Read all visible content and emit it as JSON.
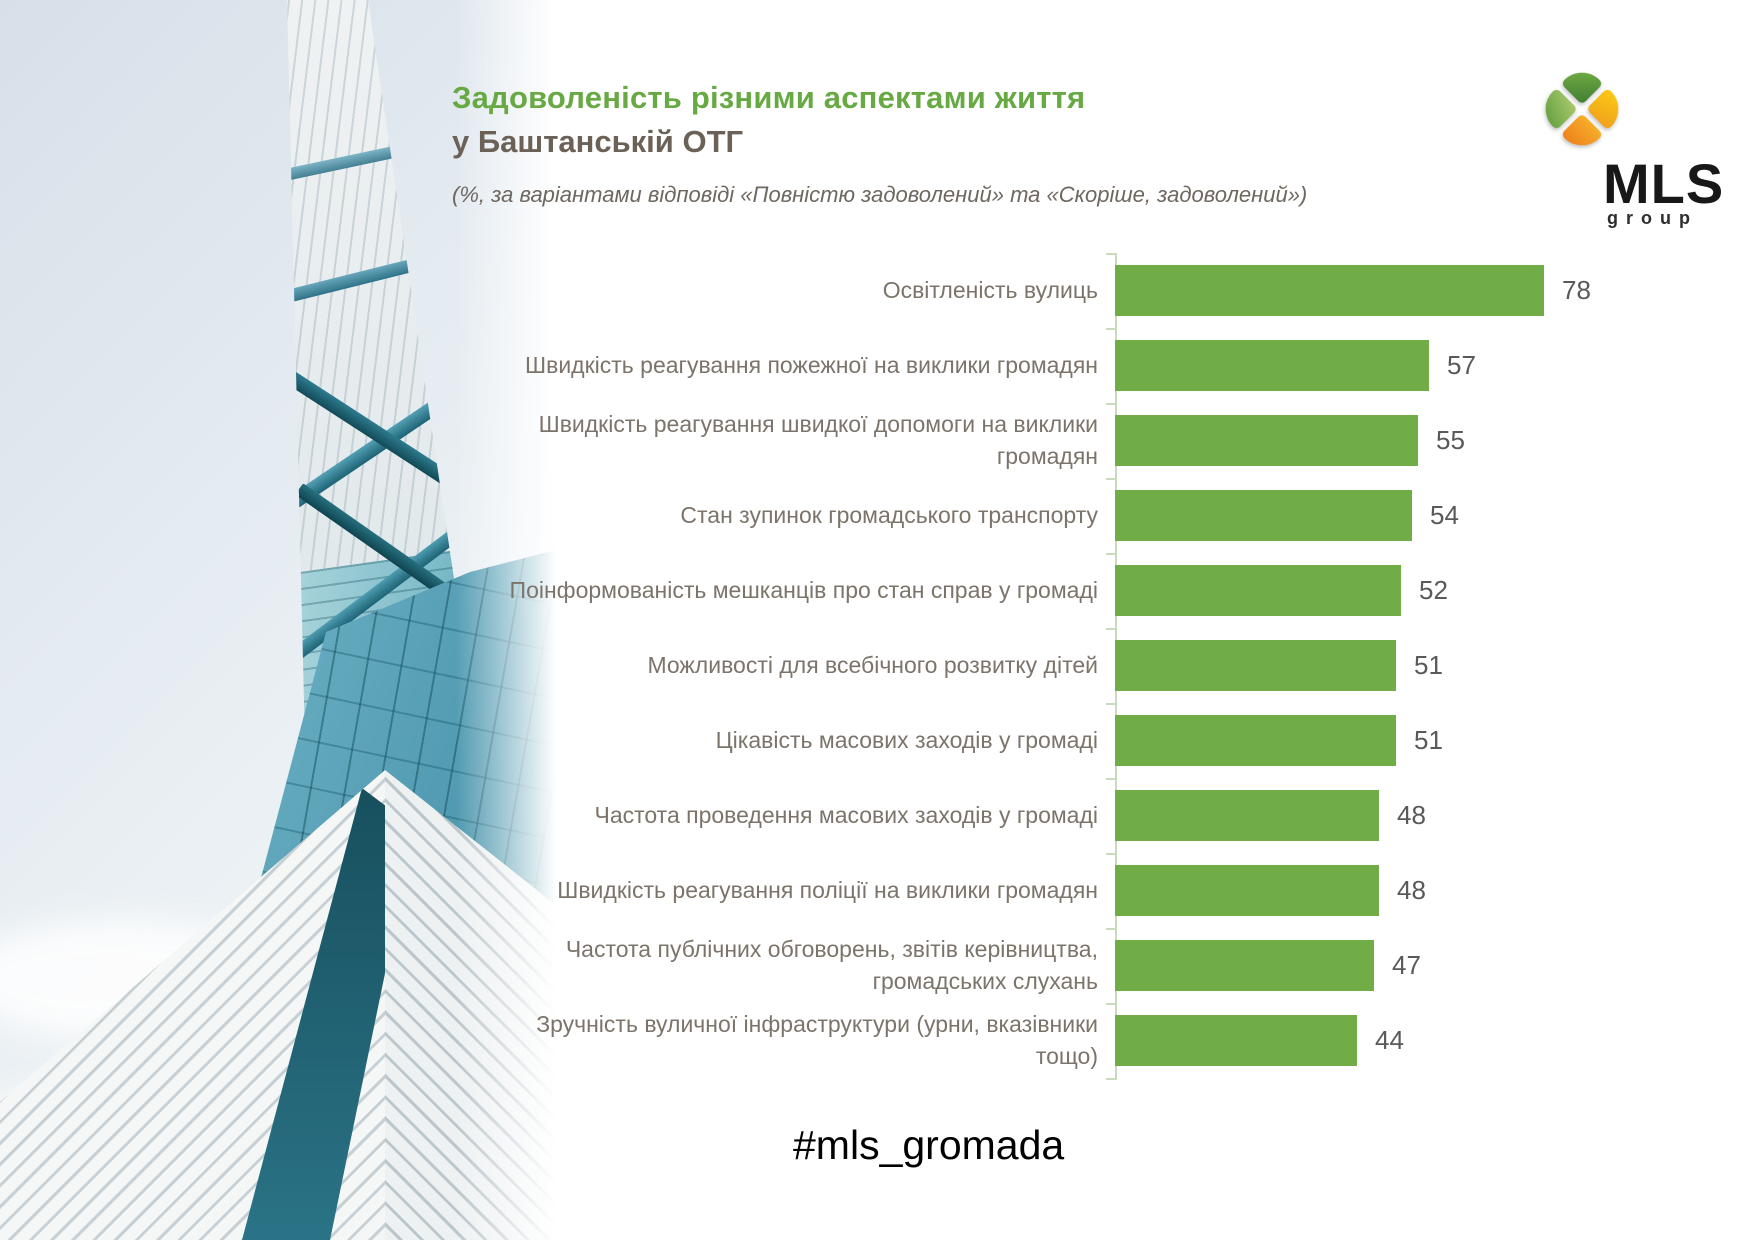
{
  "header": {
    "title_line1": "Задоволеність різними аспектами життя",
    "title_line2": "у Баштанській ОТГ",
    "subtitle": "(%, за варіантами відповіді «Повністю задоволений» та «Скоріше, задоволений»)"
  },
  "logo": {
    "name": "MLS",
    "sub": "group"
  },
  "footer": {
    "hashtag": "#mls_gromada"
  },
  "colors": {
    "bar_green": "#70ad47",
    "title_green": "#67a943",
    "axis_green": "#c6dcbb",
    "label_gray": "#7c746a",
    "value_gray": "#595959"
  },
  "chart_data": {
    "type": "bar",
    "orientation": "horizontal",
    "unit": "%",
    "grid": false,
    "value_labels": "outside-end",
    "categories": [
      "Освітленість вулиць",
      "Швидкість реагування пожежної на виклики громадян",
      "Швидкість реагування швидкої допомоги на виклики громадян",
      "Стан зупинок громадського транспорту",
      "Поінформованість мешканців про стан справ у громаді",
      "Можливості для всебічного розвитку дітей",
      "Цікавість масових заходів у громаді",
      "Частота проведення масових заходів у громаді",
      "Швидкість реагування поліції на виклики громадян",
      "Частота публічних обговорень, звітів керівництва, громадських слухань",
      "Зручність вуличної інфраструктури (урни, вказівники тощо)"
    ],
    "values": [
      78,
      57,
      55,
      54,
      52,
      51,
      51,
      48,
      48,
      47,
      44
    ],
    "xlim": [
      0,
      100
    ]
  }
}
